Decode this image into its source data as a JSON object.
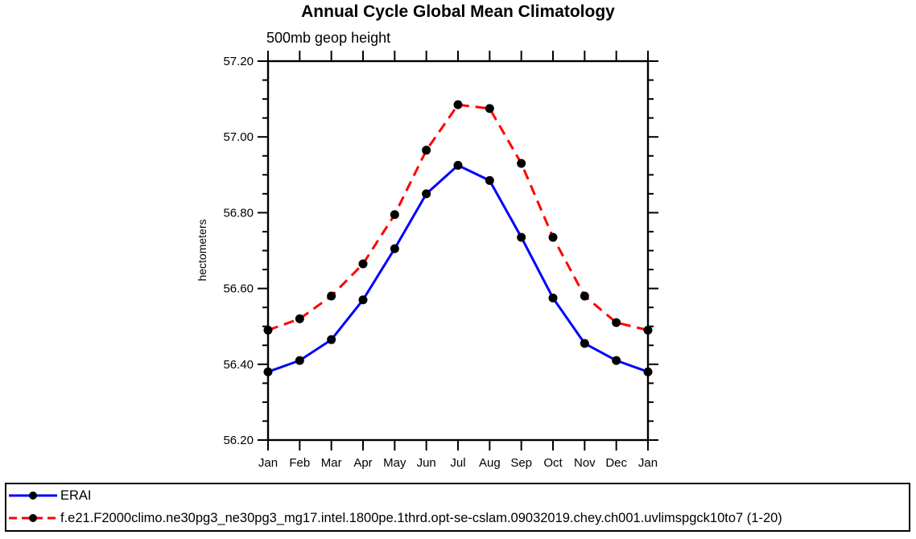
{
  "chart_data": {
    "type": "line",
    "title": "Annual Cycle Global Mean Climatology",
    "subtitle_left": "500mb geop height",
    "ylabel": "hectometers",
    "xlabel": "",
    "categories": [
      "Jan",
      "Feb",
      "Mar",
      "Apr",
      "May",
      "Jun",
      "Jul",
      "Aug",
      "Sep",
      "Oct",
      "Nov",
      "Dec",
      "Jan"
    ],
    "ylim": [
      56.2,
      57.2
    ],
    "ytick_values": [
      56.2,
      56.4,
      56.6,
      56.8,
      57.0,
      57.2
    ],
    "ytick_labels": [
      "56.20",
      "56.40",
      "56.60",
      "56.80",
      "57.00",
      "57.20"
    ],
    "yminor_step": 0.05,
    "grid": false,
    "legend_position": "bottom-left-box",
    "axis_color": "#000000",
    "marker_color": "#000000",
    "series": [
      {
        "name": "ERAI",
        "color": "#0000ff",
        "style": "solid",
        "marker": "circle",
        "values": [
          56.38,
          56.41,
          56.465,
          56.57,
          56.705,
          56.85,
          56.925,
          56.885,
          56.735,
          56.575,
          56.455,
          56.41,
          56.38
        ]
      },
      {
        "name": "f.e21.F2000climo.ne30pg3_ne30pg3_mg17.intel.1800pe.1thrd.opt-se-cslam.09032019.chey.ch001.uvlimspgck10to7 (1-20)",
        "color": "#ff0000",
        "style": "dashed",
        "marker": "circle",
        "values": [
          56.49,
          56.52,
          56.58,
          56.665,
          56.795,
          56.965,
          57.085,
          57.075,
          56.93,
          56.735,
          56.58,
          56.51,
          56.49
        ]
      }
    ]
  }
}
